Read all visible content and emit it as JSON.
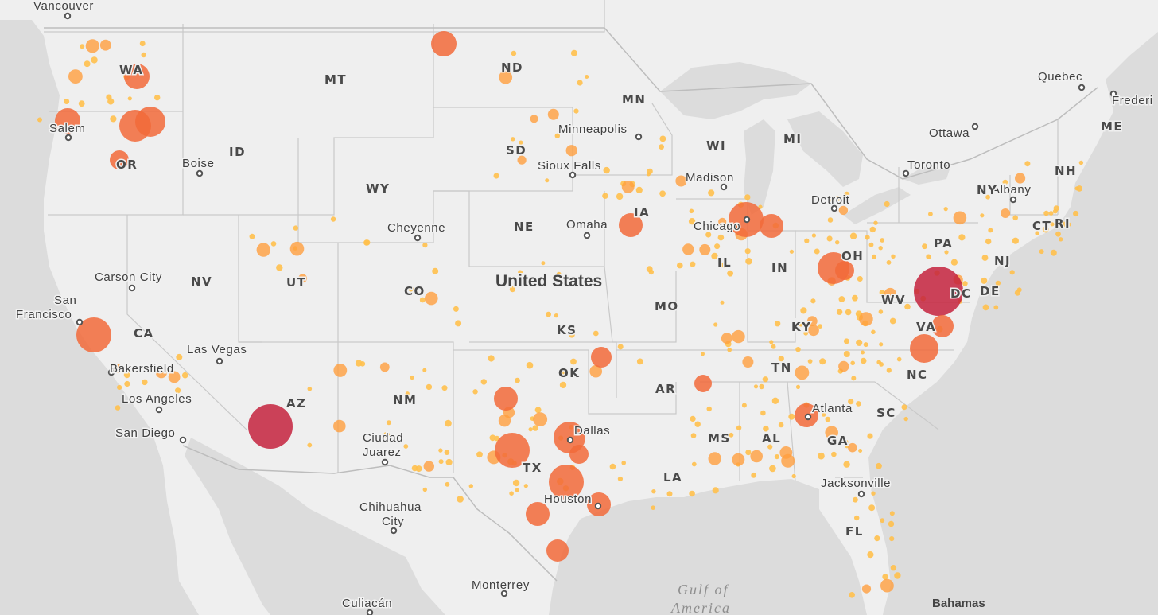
{
  "map": {
    "country_label": "United States",
    "water_label_line1": "Gulf of",
    "water_label_line2": "America",
    "bahamas_label": "Bahamas",
    "colors": {
      "water": "#dcdcdc",
      "land": "#efefef",
      "border": "#c9c9c9",
      "bubble_small": "#ffc04d",
      "bubble_medium": "#ff9f3f",
      "bubble_large": "#f26a3a",
      "bubble_largest": "#c4223d"
    }
  },
  "state_labels": [
    "WA",
    "MT",
    "ND",
    "MN",
    "OR",
    "ID",
    "SD",
    "WI",
    "MI",
    "WY",
    "NE",
    "IA",
    "CA",
    "NV",
    "UT",
    "CO",
    "IL",
    "IN",
    "OH",
    "PA",
    "NY",
    "NH",
    "ME",
    "CT",
    "RI",
    "NJ",
    "DE",
    "DC",
    "WV",
    "VA",
    "KY",
    "MO",
    "KS",
    "OK",
    "AR",
    "TN",
    "NC",
    "SC",
    "AZ",
    "NM",
    "TX",
    "LA",
    "MS",
    "AL",
    "GA",
    "FL"
  ],
  "cities": [
    {
      "name": "Vancouver"
    },
    {
      "name": "Salem"
    },
    {
      "name": "Boise"
    },
    {
      "name": "Minneapolis"
    },
    {
      "name": "Sioux Falls"
    },
    {
      "name": "Madison"
    },
    {
      "name": "Detroit"
    },
    {
      "name": "Toronto"
    },
    {
      "name": "Ottawa"
    },
    {
      "name": "Quebec"
    },
    {
      "name": "Frederi"
    },
    {
      "name": "Albany"
    },
    {
      "name": "Cheyenne"
    },
    {
      "name": "Omaha"
    },
    {
      "name": "Chicago"
    },
    {
      "name": "Carson City"
    },
    {
      "name": "San Francisco"
    },
    {
      "name": "Las Vegas"
    },
    {
      "name": "Bakersfield"
    },
    {
      "name": "Los Angeles"
    },
    {
      "name": "San Diego"
    },
    {
      "name": "Ciudad Juarez"
    },
    {
      "name": "Chihuahua City"
    },
    {
      "name": "Dallas"
    },
    {
      "name": "Houston"
    },
    {
      "name": "Atlanta"
    },
    {
      "name": "Jacksonville"
    },
    {
      "name": "Monterrey"
    },
    {
      "name": "Culiacán"
    }
  ],
  "bubbles": {
    "large": [
      {
        "size": "largest"
      },
      {
        "size": "largest"
      },
      {
        "size": "large"
      },
      {
        "size": "large"
      },
      {
        "size": "large"
      },
      {
        "size": "large"
      },
      {
        "size": "large"
      },
      {
        "size": "large"
      },
      {
        "size": "large"
      },
      {
        "size": "large"
      },
      {
        "size": "large"
      },
      {
        "size": "large"
      },
      {
        "size": "large"
      },
      {
        "size": "large"
      },
      {
        "size": "large"
      },
      {
        "size": "large"
      },
      {
        "size": "large"
      },
      {
        "size": "large"
      },
      {
        "size": "large"
      },
      {
        "size": "large"
      },
      {
        "size": "large"
      },
      {
        "size": "large"
      },
      {
        "size": "large"
      },
      {
        "size": "large"
      },
      {
        "size": "large"
      },
      {
        "size": "large"
      },
      {
        "size": "large"
      }
    ],
    "medium_count": 55,
    "small_count": 300
  }
}
